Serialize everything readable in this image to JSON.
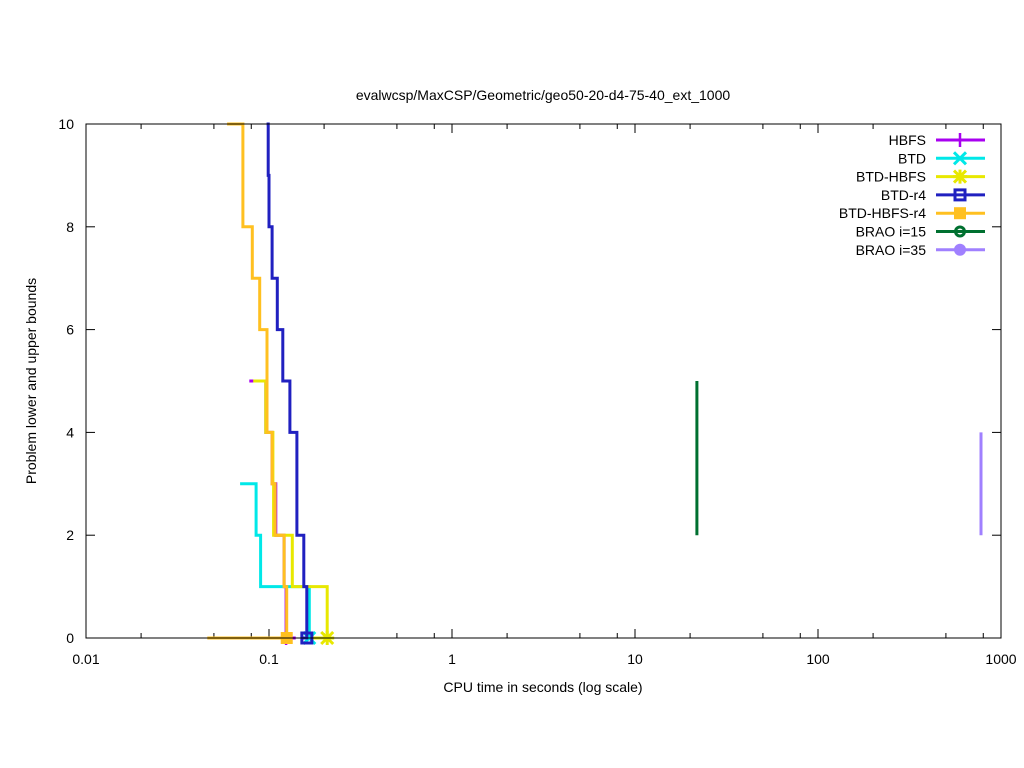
{
  "chart_data": {
    "type": "line",
    "title": "evalwcsp/MaxCSP/Geometric/geo50-20-d4-75-40_ext_1000",
    "xlabel": "CPU time in seconds (log scale)",
    "ylabel": "Problem lower and upper bounds",
    "xscale": "log",
    "xlim": [
      0.01,
      1000
    ],
    "ylim": [
      0,
      10
    ],
    "xticks": [
      {
        "v": 0.01,
        "label": "0.01"
      },
      {
        "v": 0.1,
        "label": "0.1"
      },
      {
        "v": 1,
        "label": "1"
      },
      {
        "v": 10,
        "label": "10"
      },
      {
        "v": 100,
        "label": "100"
      },
      {
        "v": 1000,
        "label": "1000"
      }
    ],
    "yticks": [
      {
        "v": 0,
        "label": "0"
      },
      {
        "v": 2,
        "label": "2"
      },
      {
        "v": 4,
        "label": "4"
      },
      {
        "v": 6,
        "label": "6"
      },
      {
        "v": 8,
        "label": "8"
      },
      {
        "v": 10,
        "label": "10"
      }
    ],
    "legend_position": "top-right",
    "series": [
      {
        "name": "HBFS",
        "color": "#a800f0",
        "marker": "plus",
        "points": [
          [
            0.078,
            5
          ],
          [
            0.096,
            5
          ],
          [
            0.096,
            4
          ],
          [
            0.104,
            4
          ],
          [
            0.104,
            3
          ],
          [
            0.109,
            3
          ],
          [
            0.109,
            2
          ],
          [
            0.121,
            2
          ],
          [
            0.121,
            1
          ],
          [
            0.124,
            1
          ],
          [
            0.124,
            0
          ],
          [
            0.14,
            0
          ]
        ]
      },
      {
        "name": "BTD",
        "color": "#00e8e8",
        "marker": "cross",
        "points": [
          [
            0.0695,
            3
          ],
          [
            0.085,
            3
          ],
          [
            0.085,
            2
          ],
          [
            0.09,
            2
          ],
          [
            0.09,
            1
          ],
          [
            0.166,
            1
          ],
          [
            0.166,
            0
          ],
          [
            0.17,
            0
          ]
        ]
      },
      {
        "name": "BTD-HBFS",
        "color": "#e8e800",
        "marker": "star",
        "points": [
          [
            0.082,
            5
          ],
          [
            0.096,
            5
          ],
          [
            0.096,
            4
          ],
          [
            0.105,
            4
          ],
          [
            0.105,
            3
          ],
          [
            0.106,
            3
          ],
          [
            0.106,
            2
          ],
          [
            0.134,
            2
          ],
          [
            0.134,
            1
          ],
          [
            0.208,
            1
          ],
          [
            0.208,
            0
          ],
          [
            0.17,
            0
          ]
        ]
      },
      {
        "name": "BTD-r4",
        "color": "#2020c0",
        "marker": "open-square",
        "points": [
          [
            0.097,
            10
          ],
          [
            0.099,
            10
          ],
          [
            0.099,
            9
          ],
          [
            0.1,
            9
          ],
          [
            0.1,
            8
          ],
          [
            0.104,
            8
          ],
          [
            0.104,
            7
          ],
          [
            0.111,
            7
          ],
          [
            0.111,
            6
          ],
          [
            0.119,
            6
          ],
          [
            0.119,
            5
          ],
          [
            0.13,
            5
          ],
          [
            0.13,
            4
          ],
          [
            0.142,
            4
          ],
          [
            0.142,
            2
          ],
          [
            0.155,
            2
          ],
          [
            0.155,
            1
          ],
          [
            0.161,
            1
          ],
          [
            0.161,
            0
          ],
          [
            0.15,
            0
          ]
        ]
      },
      {
        "name": "BTD-HBFS-r4",
        "color": "#ffc020",
        "marker": "filled-square",
        "points": [
          [
            0.059,
            10
          ],
          [
            0.072,
            10
          ],
          [
            0.072,
            8
          ],
          [
            0.081,
            8
          ],
          [
            0.081,
            7
          ],
          [
            0.089,
            7
          ],
          [
            0.089,
            6
          ],
          [
            0.0975,
            6
          ],
          [
            0.0975,
            4
          ],
          [
            0.104,
            4
          ],
          [
            0.104,
            3
          ],
          [
            0.108,
            3
          ],
          [
            0.108,
            2
          ],
          [
            0.121,
            2
          ],
          [
            0.121,
            1
          ],
          [
            0.125,
            1
          ],
          [
            0.125,
            0
          ],
          [
            0.046,
            0
          ]
        ]
      },
      {
        "name": "BRAO i=15",
        "color": "#007030",
        "marker": "open-circle",
        "points": [
          [
            21.8,
            5
          ],
          [
            21.8,
            2
          ]
        ]
      },
      {
        "name": "BRAO i=35",
        "color": "#a080ff",
        "marker": "filled-circle",
        "points": [
          [
            778,
            4
          ],
          [
            778,
            2
          ]
        ]
      }
    ]
  }
}
